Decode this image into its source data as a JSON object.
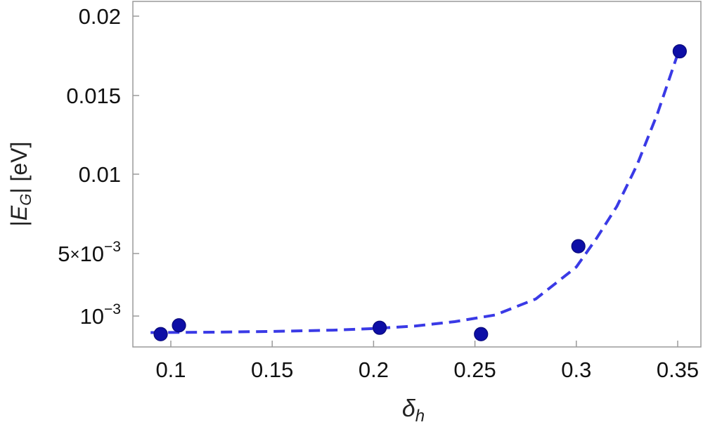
{
  "chart_data": {
    "type": "scatter",
    "xlabel": "δ_h",
    "ylabel": "|E_G| [eV]",
    "xlim": [
      0.08,
      0.36
    ],
    "ylim": [
      0.0,
      0.021
    ],
    "x_ticks": [
      0.1,
      0.15,
      0.2,
      0.25,
      0.3,
      0.35
    ],
    "x_tick_labels": [
      "0.1",
      "0.15",
      "0.2",
      "0.25",
      "0.3",
      "0.35"
    ],
    "y_ticks": [
      0.02,
      0.015,
      0.01,
      0.005,
      0.001
    ],
    "y_tick_labels": [
      "0.02",
      "0.015",
      "0.01",
      "",
      ""
    ],
    "y_tick_special": {
      "five_e3": {
        "mant": "5",
        "times": "×",
        "base": "10",
        "exp": "−3"
      },
      "one_e3": {
        "base": "10",
        "exp": "−3"
      }
    },
    "grid": false,
    "legend": "none",
    "series": [
      {
        "type": "scatter",
        "color": "#0d0ea6",
        "points": [
          {
            "x": 0.095,
            "y": 0.0001
          },
          {
            "x": 0.104,
            "y": 0.00065
          },
          {
            "x": 0.203,
            "y": 0.0005
          },
          {
            "x": 0.253,
            "y": 0.0001
          },
          {
            "x": 0.301,
            "y": 0.0056
          },
          {
            "x": 0.351,
            "y": 0.0178
          }
        ]
      },
      {
        "type": "line",
        "style": "dashed",
        "color": "#3a3ae6",
        "points": [
          {
            "x": 0.09,
            "y": 0.0002
          },
          {
            "x": 0.12,
            "y": 0.00022
          },
          {
            "x": 0.15,
            "y": 0.00027
          },
          {
            "x": 0.18,
            "y": 0.00035
          },
          {
            "x": 0.2,
            "y": 0.00045
          },
          {
            "x": 0.22,
            "y": 0.0006
          },
          {
            "x": 0.24,
            "y": 0.00088
          },
          {
            "x": 0.26,
            "y": 0.0013
          },
          {
            "x": 0.28,
            "y": 0.0023
          },
          {
            "x": 0.3,
            "y": 0.0043
          },
          {
            "x": 0.31,
            "y": 0.0061
          },
          {
            "x": 0.32,
            "y": 0.0081
          },
          {
            "x": 0.33,
            "y": 0.0107
          },
          {
            "x": 0.34,
            "y": 0.0139
          },
          {
            "x": 0.351,
            "y": 0.018
          }
        ]
      }
    ]
  }
}
